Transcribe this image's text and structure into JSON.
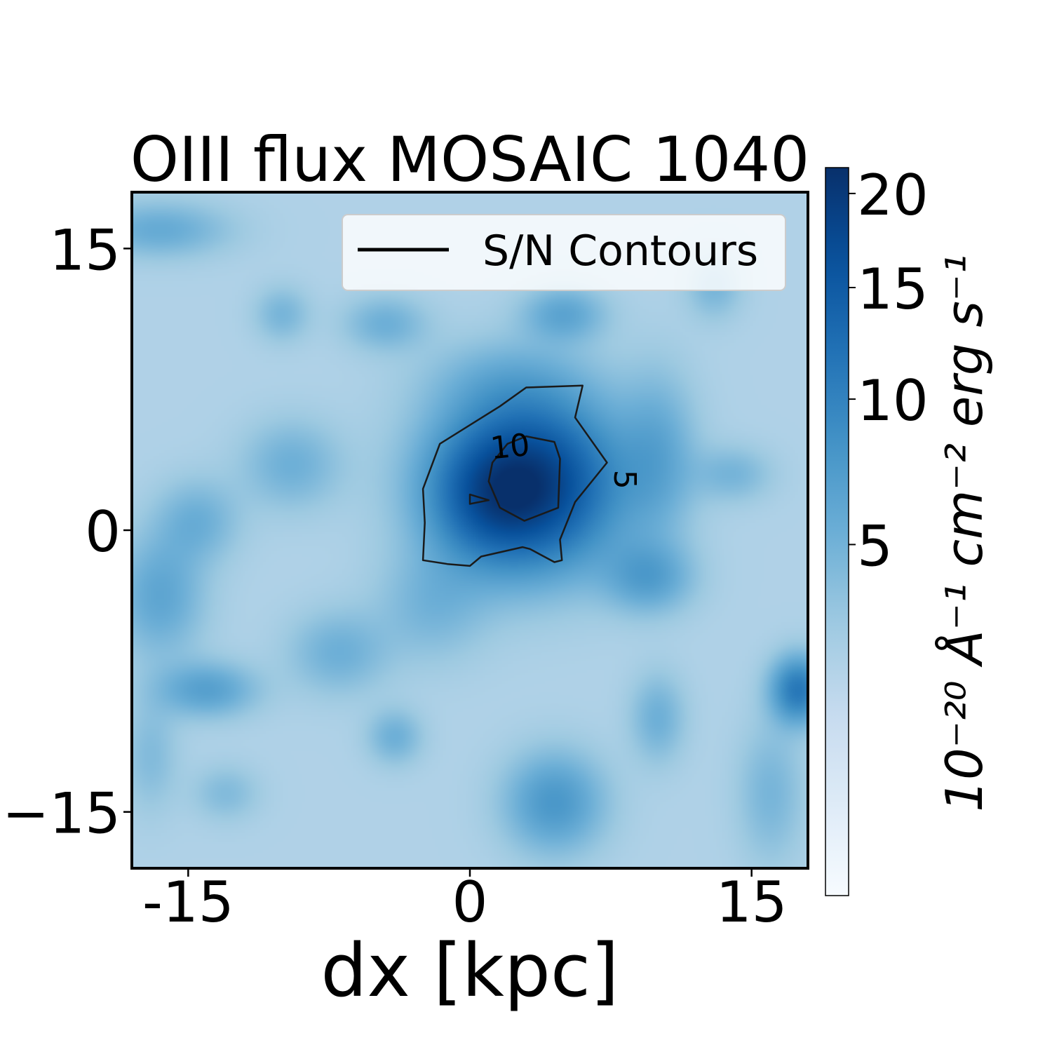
{
  "chart_data": {
    "type": "heatmap",
    "title": "OIII flux MOSAIC 1040",
    "xlabel": "dx [kpc]",
    "ylabel": "",
    "xlim": [
      -18,
      18
    ],
    "ylim": [
      -18,
      18
    ],
    "x_ticks": [
      {
        "value": -15,
        "label": "-15"
      },
      {
        "value": 0,
        "label": "0"
      },
      {
        "value": 15,
        "label": "15"
      }
    ],
    "y_ticks": [
      {
        "value": 15,
        "label": "15"
      },
      {
        "value": 0,
        "label": "0"
      },
      {
        "value": -15,
        "label": "−15"
      }
    ],
    "colormap": "Blues",
    "colormap_stops": [
      "#f7fbff",
      "#deebf7",
      "#c6dbef",
      "#9ecae1",
      "#6baed6",
      "#4292c6",
      "#2171b5",
      "#08519c",
      "#08306b"
    ],
    "colorbar": {
      "range": [
        0,
        21.5
      ],
      "scale": "sqrt",
      "ticks": [
        {
          "value": 5,
          "label": "5"
        },
        {
          "value": 10,
          "label": "10"
        },
        {
          "value": 15,
          "label": "15"
        },
        {
          "value": 20,
          "label": "20"
        }
      ],
      "label": "10⁻²⁰ Å⁻¹ cm⁻² erg s⁻¹"
    },
    "field": {
      "background": 2.2,
      "sources": [
        {
          "x": 3.0,
          "y": 2.5,
          "amp": 18.0,
          "sx": 3.2,
          "sy": 3.0
        },
        {
          "x": 1.0,
          "y": 1.5,
          "amp": 4.0,
          "sx": 2.0,
          "sy": 2.0
        },
        {
          "x": 10.0,
          "y": 4.0,
          "amp": 3.5,
          "sx": 1.4,
          "sy": 3.0
        },
        {
          "x": -9.5,
          "y": 3.5,
          "amp": 3.0,
          "sx": 1.8,
          "sy": 1.6
        },
        {
          "x": -14.5,
          "y": 0.5,
          "amp": 3.0,
          "sx": 1.5,
          "sy": 1.5
        },
        {
          "x": -16.5,
          "y": -3.5,
          "amp": 4.0,
          "sx": 1.6,
          "sy": 2.2
        },
        {
          "x": -14.0,
          "y": -8.5,
          "amp": 4.5,
          "sx": 1.8,
          "sy": 1.0
        },
        {
          "x": 17.5,
          "y": -8.5,
          "amp": 9.0,
          "sx": 1.0,
          "sy": 1.2
        },
        {
          "x": 9.5,
          "y": -2.5,
          "amp": 4.5,
          "sx": 1.6,
          "sy": 1.3
        },
        {
          "x": 4.5,
          "y": -14.5,
          "amp": 5.5,
          "sx": 1.8,
          "sy": 1.8
        },
        {
          "x": 5.0,
          "y": 11.5,
          "amp": 4.0,
          "sx": 1.5,
          "sy": 1.0
        },
        {
          "x": -16.5,
          "y": 16.0,
          "amp": 3.5,
          "sx": 2.5,
          "sy": 1.0
        },
        {
          "x": -4.5,
          "y": 11.0,
          "amp": 3.0,
          "sx": 1.5,
          "sy": 1.0
        },
        {
          "x": -10.0,
          "y": 11.5,
          "amp": 2.5,
          "sx": 1.0,
          "sy": 1.0
        },
        {
          "x": -7.0,
          "y": -6.5,
          "amp": 3.0,
          "sx": 1.8,
          "sy": 1.5
        },
        {
          "x": -4.0,
          "y": -11.0,
          "amp": 3.0,
          "sx": 1.0,
          "sy": 1.0
        },
        {
          "x": 10.0,
          "y": -10.0,
          "amp": 3.0,
          "sx": 1.0,
          "sy": 1.6
        },
        {
          "x": 13.0,
          "y": 13.0,
          "amp": 2.5,
          "sx": 1.0,
          "sy": 1.2
        },
        {
          "x": 14.0,
          "y": 3.0,
          "amp": 2.5,
          "sx": 1.4,
          "sy": 1.0
        },
        {
          "x": -13.0,
          "y": -14.0,
          "amp": 2.0,
          "sx": 1.2,
          "sy": 1.0
        },
        {
          "x": 2.0,
          "y": 8.0,
          "amp": 2.0,
          "sx": 3.0,
          "sy": 1.5
        },
        {
          "x": -2.0,
          "y": -4.0,
          "amp": 2.5,
          "sx": 2.0,
          "sy": 2.0
        },
        {
          "x": 16.0,
          "y": -14.0,
          "amp": 2.5,
          "sx": 1.2,
          "sy": 2.5
        },
        {
          "x": -17.0,
          "y": -12.0,
          "amp": 2.0,
          "sx": 1.0,
          "sy": 2.0
        }
      ]
    },
    "contours": [
      {
        "level": 5,
        "label": "5",
        "points": [
          [
            -2.5,
            2.2
          ],
          [
            -1.6,
            4.6
          ],
          [
            1.6,
            6.6
          ],
          [
            3.0,
            7.6
          ],
          [
            6.0,
            7.7
          ],
          [
            5.6,
            6.0
          ],
          [
            7.3,
            3.6
          ],
          [
            5.6,
            1.5
          ],
          [
            4.8,
            -0.5
          ],
          [
            4.9,
            -1.6
          ],
          [
            4.5,
            -1.7
          ],
          [
            3.2,
            -1.0
          ],
          [
            2.8,
            -0.9
          ],
          [
            0.6,
            -1.4
          ],
          [
            0.0,
            -1.9
          ],
          [
            -1.2,
            -1.8
          ],
          [
            -2.5,
            -1.6
          ],
          [
            -2.4,
            0.4
          ]
        ]
      },
      {
        "level": 10,
        "label": "10",
        "points": [
          [
            2.0,
            4.6
          ],
          [
            1.2,
            3.6
          ],
          [
            1.0,
            2.6
          ],
          [
            1.6,
            1.2
          ],
          [
            2.9,
            0.5
          ],
          [
            4.7,
            1.2
          ],
          [
            4.8,
            3.8
          ],
          [
            4.5,
            4.7
          ],
          [
            3.0,
            5.0
          ]
        ]
      },
      {
        "level": 10,
        "label": "",
        "points": [
          [
            0.0,
            1.4
          ],
          [
            1.0,
            1.6
          ],
          [
            0.0,
            1.9
          ]
        ]
      }
    ],
    "legend": {
      "placement": "upper right",
      "entries": [
        "S/N Contours"
      ]
    }
  }
}
